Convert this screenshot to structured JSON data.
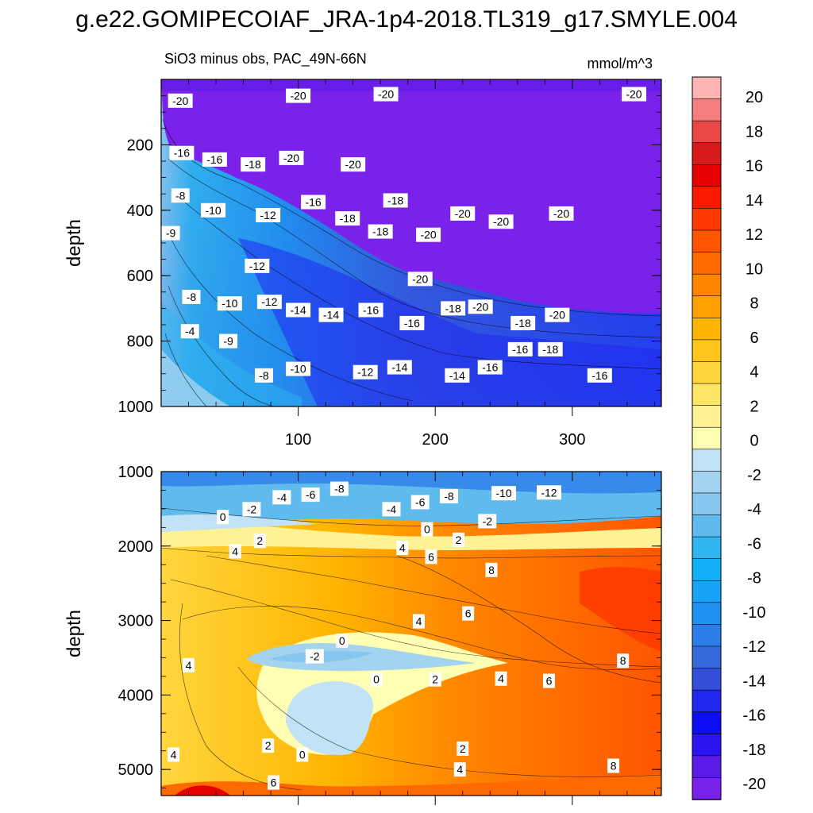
{
  "title": "g.e22.GOMIPECOIAF_JRA-1p4-2018.TL319_g17.SMYLE.004",
  "chart_data": [
    {
      "type": "heatmap",
      "panel": "upper",
      "subtitle_left": "SiO3 minus obs, PAC_49N-66N",
      "subtitle_right": "mmol/m^3",
      "ylabel": "depth",
      "xlim": [
        0,
        365
      ],
      "ylim": [
        1000,
        0
      ],
      "xticks": [
        100,
        200,
        300
      ],
      "yticks": [
        200,
        400,
        600,
        800,
        1000
      ],
      "contour_labels": [
        {
          "x": 14,
          "y": 65,
          "v": "-20"
        },
        {
          "x": 100,
          "y": 50,
          "v": "-20"
        },
        {
          "x": 164,
          "y": 45,
          "v": "-20"
        },
        {
          "x": 345,
          "y": 45,
          "v": "-20"
        },
        {
          "x": 15,
          "y": 225,
          "v": "-16"
        },
        {
          "x": 39,
          "y": 245,
          "v": "-16"
        },
        {
          "x": 67,
          "y": 260,
          "v": "-18"
        },
        {
          "x": 95,
          "y": 240,
          "v": "-20"
        },
        {
          "x": 140,
          "y": 260,
          "v": "-20"
        },
        {
          "x": 14,
          "y": 355,
          "v": "-8"
        },
        {
          "x": 38,
          "y": 400,
          "v": "-10"
        },
        {
          "x": 78,
          "y": 415,
          "v": "-12"
        },
        {
          "x": 111,
          "y": 375,
          "v": "-16"
        },
        {
          "x": 136,
          "y": 425,
          "v": "-18"
        },
        {
          "x": 171,
          "y": 370,
          "v": "-18"
        },
        {
          "x": 160,
          "y": 465,
          "v": "-18"
        },
        {
          "x": 195,
          "y": 475,
          "v": "-20"
        },
        {
          "x": 220,
          "y": 410,
          "v": "-20"
        },
        {
          "x": 248,
          "y": 435,
          "v": "-20"
        },
        {
          "x": 292,
          "y": 410,
          "v": "-20"
        },
        {
          "x": 7,
          "y": 470,
          "v": "-9"
        },
        {
          "x": 70,
          "y": 570,
          "v": "-12"
        },
        {
          "x": 189,
          "y": 610,
          "v": "-20"
        },
        {
          "x": 22,
          "y": 665,
          "v": "-8"
        },
        {
          "x": 50,
          "y": 685,
          "v": "-10"
        },
        {
          "x": 79,
          "y": 680,
          "v": "-12"
        },
        {
          "x": 100,
          "y": 705,
          "v": "-14"
        },
        {
          "x": 124,
          "y": 720,
          "v": "-14"
        },
        {
          "x": 153,
          "y": 705,
          "v": "-16"
        },
        {
          "x": 183,
          "y": 745,
          "v": "-16"
        },
        {
          "x": 213,
          "y": 700,
          "v": "-18"
        },
        {
          "x": 233,
          "y": 695,
          "v": "-20"
        },
        {
          "x": 264,
          "y": 745,
          "v": "-18"
        },
        {
          "x": 289,
          "y": 720,
          "v": "-20"
        },
        {
          "x": 21,
          "y": 770,
          "v": "-4"
        },
        {
          "x": 49,
          "y": 800,
          "v": "-9"
        },
        {
          "x": 262,
          "y": 825,
          "v": "-16"
        },
        {
          "x": 284,
          "y": 825,
          "v": "-18"
        },
        {
          "x": 75,
          "y": 905,
          "v": "-8"
        },
        {
          "x": 100,
          "y": 885,
          "v": "-10"
        },
        {
          "x": 149,
          "y": 895,
          "v": "-12"
        },
        {
          "x": 174,
          "y": 880,
          "v": "-14"
        },
        {
          "x": 216,
          "y": 905,
          "v": "-14"
        },
        {
          "x": 240,
          "y": 880,
          "v": "-16"
        },
        {
          "x": 320,
          "y": 905,
          "v": "-16"
        }
      ]
    },
    {
      "type": "heatmap",
      "panel": "lower",
      "ylabel": "depth",
      "xlim": [
        0,
        365
      ],
      "ylim": [
        5350,
        1000
      ],
      "yticks": [
        1000,
        2000,
        3000,
        4000,
        5000
      ],
      "contour_labels": [
        {
          "x": 88,
          "y": 1345,
          "v": "-4"
        },
        {
          "x": 109,
          "y": 1310,
          "v": "-6"
        },
        {
          "x": 130,
          "y": 1230,
          "v": "-8"
        },
        {
          "x": 66,
          "y": 1505,
          "v": "-2"
        },
        {
          "x": 45,
          "y": 1610,
          "v": "0"
        },
        {
          "x": 168,
          "y": 1505,
          "v": "-4"
        },
        {
          "x": 189,
          "y": 1410,
          "v": "-6"
        },
        {
          "x": 210,
          "y": 1330,
          "v": "-8"
        },
        {
          "x": 250,
          "y": 1290,
          "v": "-10"
        },
        {
          "x": 283,
          "y": 1280,
          "v": "-12"
        },
        {
          "x": 238,
          "y": 1665,
          "v": "-2"
        },
        {
          "x": 194,
          "y": 1775,
          "v": "0"
        },
        {
          "x": 217,
          "y": 1915,
          "v": "2"
        },
        {
          "x": 72,
          "y": 1930,
          "v": "2"
        },
        {
          "x": 54,
          "y": 2070,
          "v": "4"
        },
        {
          "x": 176,
          "y": 2025,
          "v": "4"
        },
        {
          "x": 197,
          "y": 2145,
          "v": "6"
        },
        {
          "x": 241,
          "y": 2320,
          "v": "8"
        },
        {
          "x": 224,
          "y": 2905,
          "v": "6"
        },
        {
          "x": 188,
          "y": 3010,
          "v": "4"
        },
        {
          "x": 132,
          "y": 3270,
          "v": "0"
        },
        {
          "x": 112,
          "y": 3480,
          "v": "-2"
        },
        {
          "x": 20,
          "y": 3600,
          "v": "4"
        },
        {
          "x": 157,
          "y": 3790,
          "v": "0"
        },
        {
          "x": 200,
          "y": 3790,
          "v": "2"
        },
        {
          "x": 248,
          "y": 3780,
          "v": "4"
        },
        {
          "x": 283,
          "y": 3810,
          "v": "6"
        },
        {
          "x": 337,
          "y": 3540,
          "v": "8"
        },
        {
          "x": 78,
          "y": 4680,
          "v": "2"
        },
        {
          "x": 103,
          "y": 4800,
          "v": "0"
        },
        {
          "x": 220,
          "y": 4720,
          "v": "2"
        },
        {
          "x": 218,
          "y": 5000,
          "v": "4"
        },
        {
          "x": 9,
          "y": 4800,
          "v": "4"
        },
        {
          "x": 82,
          "y": 5175,
          "v": "6"
        },
        {
          "x": 330,
          "y": 4950,
          "v": "8"
        }
      ]
    }
  ],
  "colorbar": {
    "ticks": [
      "20",
      "18",
      "16",
      "14",
      "12",
      "10",
      "8",
      "6",
      "4",
      "2",
      "0",
      "-2",
      "-4",
      "-6",
      "-8",
      "-10",
      "-12",
      "-14",
      "-16",
      "-18",
      "-20"
    ],
    "colors": [
      "#ffb4b4",
      "#f47d7d",
      "#e84747",
      "#d71a1a",
      "#e50000",
      "#fa1a00",
      "#ff3700",
      "#ff5500",
      "#ff6a00",
      "#ff8500",
      "#ffa000",
      "#ffb400",
      "#ffc51b",
      "#ffd63e",
      "#ffe566",
      "#fff295",
      "#ffffb4",
      "#c2e2f5",
      "#a4d3f0",
      "#86c6ef",
      "#5fbbee",
      "#30b5f0",
      "#12b0f8",
      "#16a3f8",
      "#1f91f0",
      "#2b7ee8",
      "#3669dc",
      "#354ed9",
      "#2028f0",
      "#0c0cf5",
      "#2a14ef",
      "#5b1ae8",
      "#7a22e9"
    ]
  }
}
